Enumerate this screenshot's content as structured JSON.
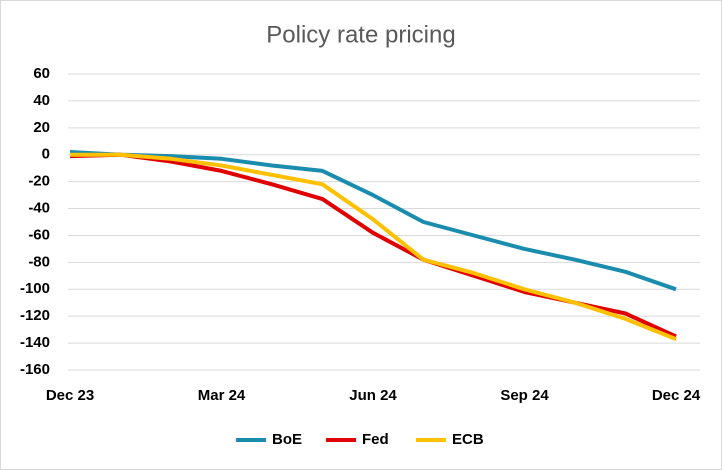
{
  "chart_data": {
    "type": "line",
    "title": "Policy rate pricing",
    "categories": [
      "Dec 23",
      null,
      null,
      "Mar 24",
      null,
      null,
      "Jun 24",
      null,
      null,
      "Sep 24",
      null,
      null,
      "Dec 24"
    ],
    "series": [
      {
        "name": "BoE",
        "color": "#1a8cad",
        "values": [
          2,
          0,
          -1,
          -3,
          -8,
          -12,
          -30,
          -50,
          -60,
          -70,
          -78,
          -87,
          -100
        ]
      },
      {
        "name": "Fed",
        "color": "#e00000",
        "values": [
          -1,
          0,
          -5,
          -12,
          -22,
          -33,
          -58,
          -78,
          -90,
          -102,
          -110,
          -118,
          -135
        ]
      },
      {
        "name": "ECB",
        "color": "#ffc000",
        "values": [
          0,
          0,
          -3,
          -8,
          -15,
          -22,
          -48,
          -78,
          -88,
          -100,
          -110,
          -122,
          -137
        ]
      }
    ],
    "ylim": [
      -160,
      60
    ],
    "yticks": [
      60,
      40,
      20,
      0,
      -20,
      -40,
      -60,
      -80,
      -100,
      -120,
      -140,
      -160
    ],
    "grid": true
  }
}
